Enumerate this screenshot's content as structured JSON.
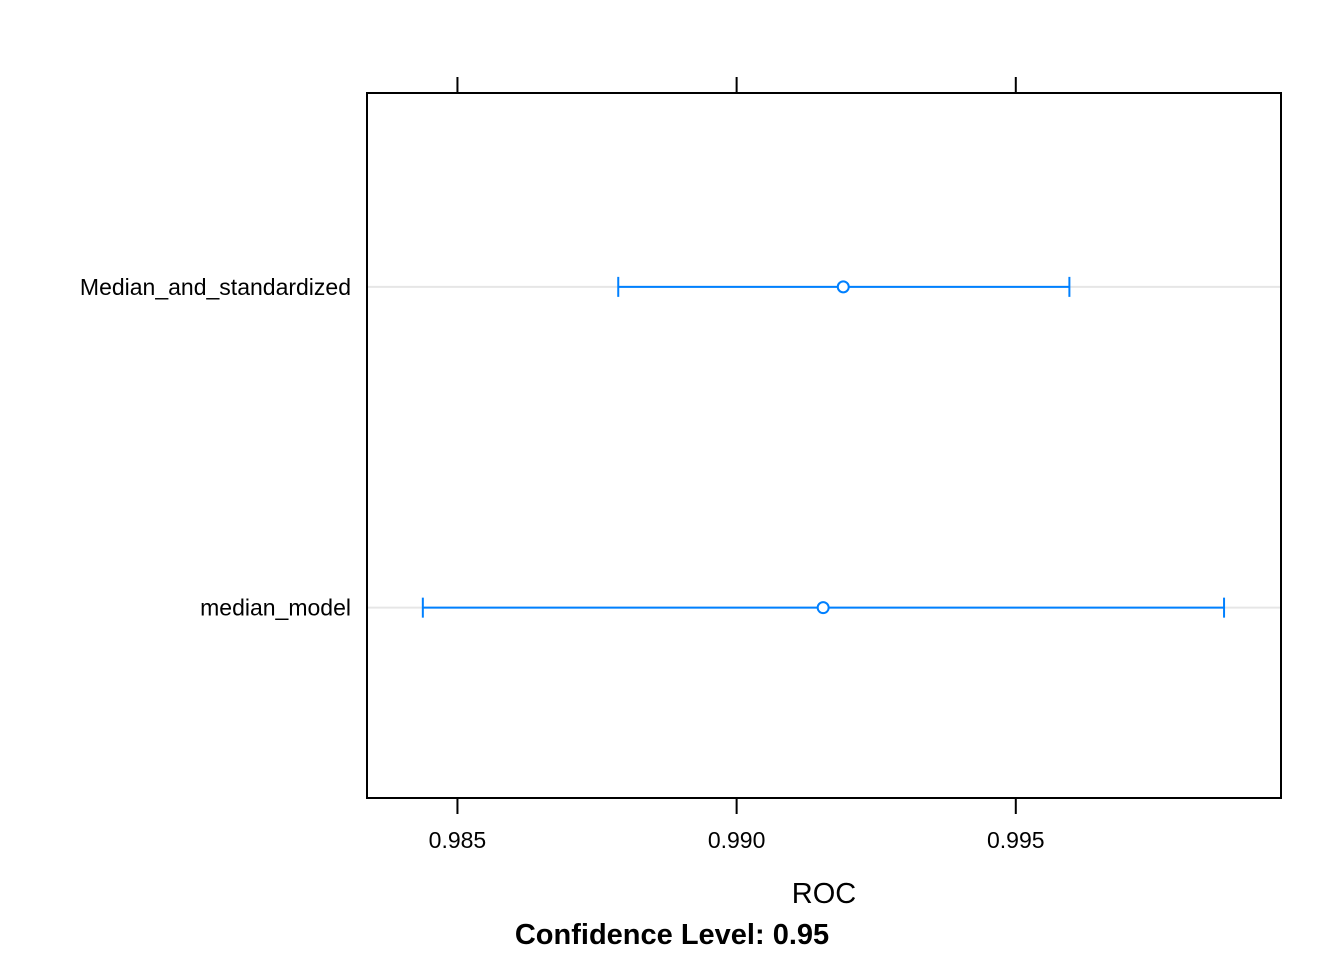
{
  "chart_data": {
    "type": "dotplot-interval",
    "xlabel": "ROC",
    "subtitle": "Confidence Level: 0.95",
    "xlim": [
      0.98338,
      0.99975
    ],
    "x_ticks": [
      0.985,
      0.99,
      0.995
    ],
    "x_tick_labels": [
      "0.985",
      "0.990",
      "0.995"
    ],
    "categories": [
      "Median_and_standardized",
      "median_model"
    ],
    "series": [
      {
        "estimate": [
          0.99191,
          0.99155
        ],
        "lower": [
          0.98788,
          0.98438
        ],
        "upper": [
          0.99596,
          0.99873
        ]
      }
    ],
    "colors": {
      "marker": "#0080ff",
      "gridline": "#e6e6e6",
      "frame": "#000000"
    },
    "grid": true
  }
}
